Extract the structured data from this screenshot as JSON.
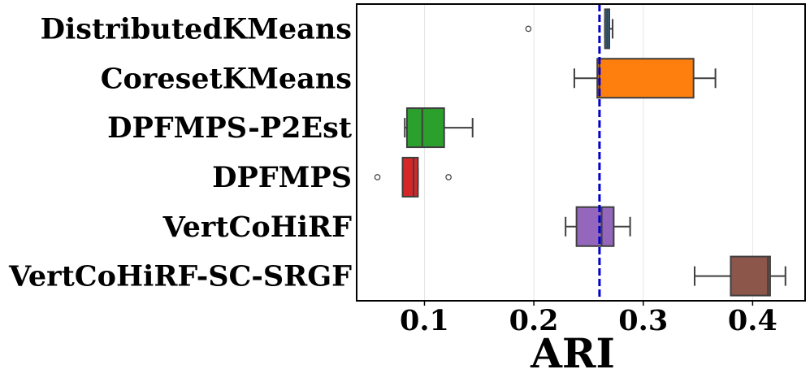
{
  "chart_data": {
    "type": "box",
    "xlabel": "ARI",
    "xlim": [
      0.038,
      0.448
    ],
    "xticks": [
      0.1,
      0.2,
      0.3,
      0.4
    ],
    "xtick_labels": [
      "0.1",
      "0.2",
      "0.3",
      "0.4"
    ],
    "grid": "vertical",
    "reference_line": {
      "value": 0.26,
      "color": "#0000cc",
      "style": "dashed"
    },
    "series": [
      {
        "name": "DistributedKMeans",
        "color": "#1f77b4",
        "whisker_low": 0.265,
        "q1": 0.265,
        "median": 0.267,
        "q3": 0.269,
        "whisker_high": 0.272,
        "outliers": [
          0.195
        ]
      },
      {
        "name": "CoresetKMeans",
        "color": "#ff7f0e",
        "whisker_low": 0.237,
        "q1": 0.258,
        "median": 0.26,
        "q3": 0.346,
        "whisker_high": 0.366,
        "outliers": []
      },
      {
        "name": "DPFMPS-P2Est",
        "color": "#2ca02c",
        "whisker_low": 0.082,
        "q1": 0.084,
        "median": 0.098,
        "q3": 0.118,
        "whisker_high": 0.144,
        "outliers": []
      },
      {
        "name": "DPFMPS",
        "color": "#d62728",
        "whisker_low": 0.08,
        "q1": 0.08,
        "median": 0.09,
        "q3": 0.094,
        "whisker_high": 0.094,
        "outliers": [
          0.057,
          0.122
        ]
      },
      {
        "name": "VertCoHiRF",
        "color": "#9467bd",
        "whisker_low": 0.229,
        "q1": 0.239,
        "median": 0.262,
        "q3": 0.273,
        "whisker_high": 0.288,
        "outliers": []
      },
      {
        "name": "VertCoHiRF-SC-SRGF",
        "color": "#8c564b",
        "whisker_low": 0.347,
        "q1": 0.38,
        "median": 0.414,
        "q3": 0.416,
        "whisker_high": 0.43,
        "outliers": []
      }
    ]
  }
}
